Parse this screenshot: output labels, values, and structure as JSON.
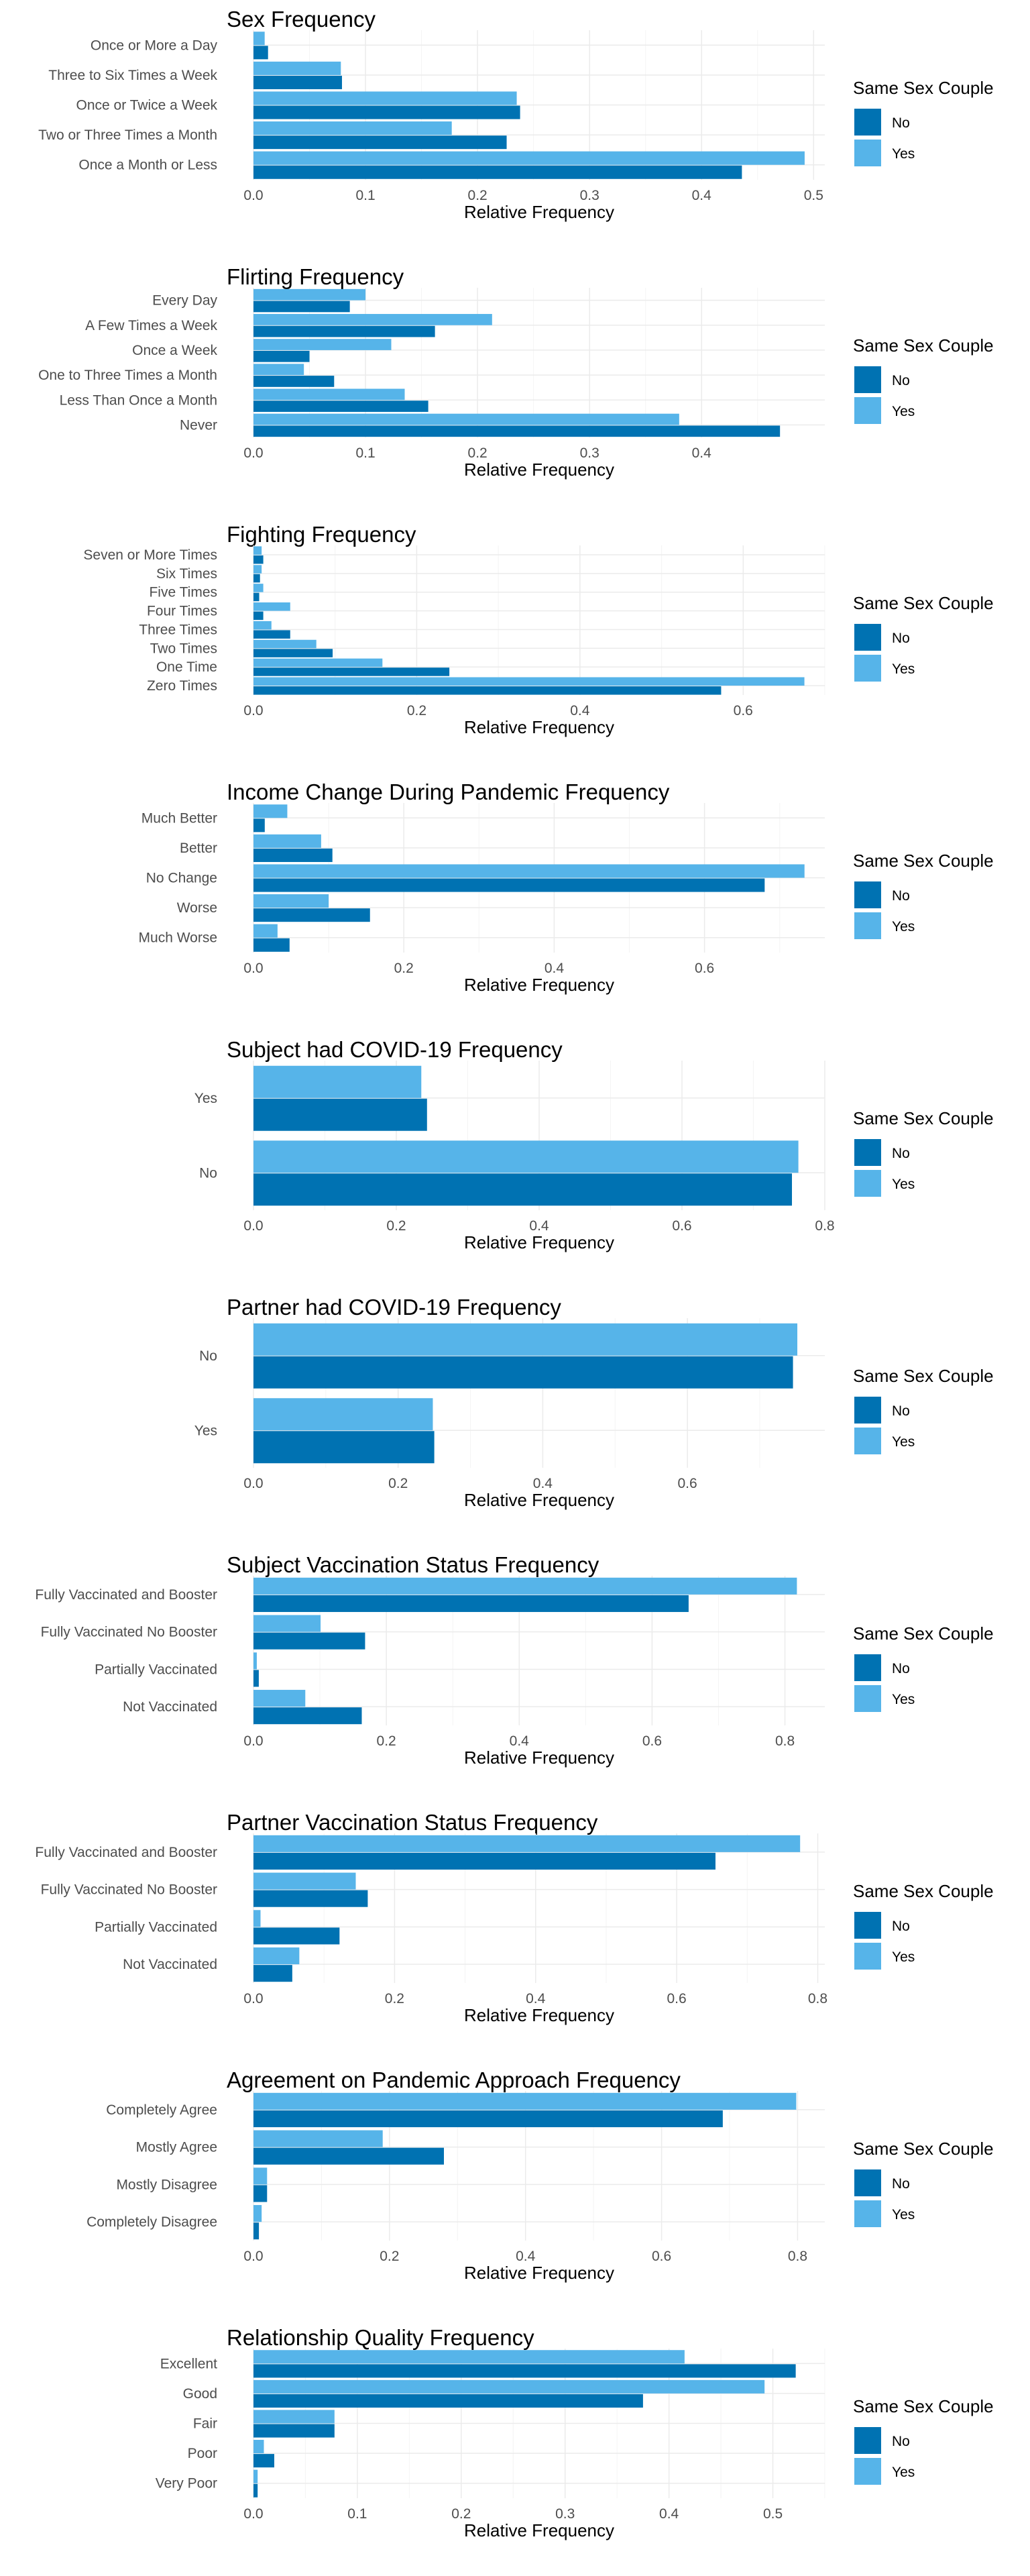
{
  "colors": {
    "No": "#0072b2",
    "Yes": "#56b4e9"
  },
  "legend": {
    "title": "Same Sex Couple",
    "labels": [
      "No",
      "Yes"
    ]
  },
  "chart_data": [
    {
      "type": "bar",
      "title": "Sex Frequency",
      "xlabel": "Relative Frequency",
      "xlim": [
        0,
        0.51
      ],
      "ticks": [
        0.0,
        0.1,
        0.2,
        0.3,
        0.4,
        0.5
      ],
      "tick_labels": [
        "0.0",
        "0.1",
        "0.2",
        "0.3",
        "0.4",
        "0.5"
      ],
      "categories": [
        "Once or More a Day",
        "Three to Six Times a Week",
        "Once or Twice a Week",
        "Two or Three Times a Month",
        "Once a Month or Less"
      ],
      "series": [
        {
          "name": "No",
          "values": [
            0.013,
            0.079,
            0.238,
            0.226,
            0.436
          ]
        },
        {
          "name": "Yes",
          "values": [
            0.01,
            0.078,
            0.235,
            0.177,
            0.492
          ]
        }
      ]
    },
    {
      "type": "bar",
      "title": "Flirting Frequency",
      "xlabel": "Relative Frequency",
      "xlim": [
        0,
        0.51
      ],
      "ticks": [
        0.0,
        0.1,
        0.2,
        0.3,
        0.4
      ],
      "tick_labels": [
        "0.0",
        "0.1",
        "0.2",
        "0.3",
        "0.4"
      ],
      "categories": [
        "Every Day",
        "A Few Times a Week",
        "Once a Week",
        "One to Three Times a Month",
        "Less Than Once a Month",
        "Never"
      ],
      "series": [
        {
          "name": "No",
          "values": [
            0.086,
            0.162,
            0.05,
            0.072,
            0.156,
            0.47
          ]
        },
        {
          "name": "Yes",
          "values": [
            0.1,
            0.213,
            0.123,
            0.045,
            0.135,
            0.38
          ]
        }
      ]
    },
    {
      "type": "bar",
      "title": "Fighting Frequency",
      "xlabel": "Relative Frequency",
      "xlim": [
        0,
        0.7
      ],
      "ticks": [
        0.0,
        0.2,
        0.4,
        0.6
      ],
      "tick_labels": [
        "0.0",
        "0.2",
        "0.4",
        "0.6"
      ],
      "categories": [
        "Seven or More Times",
        "Six Times",
        "Five Times",
        "Four Times",
        "Three Times",
        "Two Times",
        "One Time",
        "Zero Times"
      ],
      "series": [
        {
          "name": "No",
          "values": [
            0.012,
            0.008,
            0.007,
            0.012,
            0.045,
            0.097,
            0.24,
            0.573
          ]
        },
        {
          "name": "Yes",
          "values": [
            0.01,
            0.01,
            0.012,
            0.045,
            0.022,
            0.077,
            0.158,
            0.675
          ]
        }
      ]
    },
    {
      "type": "bar",
      "title": "Income Change During Pandemic Frequency",
      "xlabel": "Relative Frequency",
      "xlim": [
        0,
        0.76
      ],
      "ticks": [
        0.0,
        0.2,
        0.4,
        0.6
      ],
      "tick_labels": [
        "0.0",
        "0.2",
        "0.4",
        "0.6"
      ],
      "categories": [
        "Much Better",
        "Better",
        "No Change",
        "Worse",
        "Much Worse"
      ],
      "series": [
        {
          "name": "No",
          "values": [
            0.015,
            0.105,
            0.68,
            0.155,
            0.048
          ]
        },
        {
          "name": "Yes",
          "values": [
            0.045,
            0.09,
            0.733,
            0.1,
            0.032
          ]
        }
      ]
    },
    {
      "type": "bar",
      "title": "Subject had COVID-19 Frequency",
      "xlabel": "Relative Frequency",
      "xlim": [
        0,
        0.8
      ],
      "ticks": [
        0.0,
        0.2,
        0.4,
        0.6,
        0.8
      ],
      "tick_labels": [
        "0.0",
        "0.2",
        "0.4",
        "0.6",
        "0.8"
      ],
      "categories": [
        "Yes",
        "No"
      ],
      "series": [
        {
          "name": "No",
          "values": [
            0.243,
            0.754
          ]
        },
        {
          "name": "Yes",
          "values": [
            0.235,
            0.763
          ]
        }
      ]
    },
    {
      "type": "bar",
      "title": "Partner had COVID-19 Frequency",
      "xlabel": "Relative Frequency",
      "xlim": [
        0,
        0.79
      ],
      "ticks": [
        0.0,
        0.2,
        0.4,
        0.6
      ],
      "tick_labels": [
        "0.0",
        "0.2",
        "0.4",
        "0.6"
      ],
      "categories": [
        "No",
        "Yes"
      ],
      "series": [
        {
          "name": "No",
          "values": [
            0.746,
            0.25
          ]
        },
        {
          "name": "Yes",
          "values": [
            0.752,
            0.248
          ]
        }
      ]
    },
    {
      "type": "bar",
      "title": "Subject Vaccination Status Frequency",
      "xlabel": "Relative Frequency",
      "xlim": [
        0,
        0.86
      ],
      "ticks": [
        0.0,
        0.2,
        0.4,
        0.6,
        0.8
      ],
      "tick_labels": [
        "0.0",
        "0.2",
        "0.4",
        "0.6",
        "0.8"
      ],
      "categories": [
        "Fully Vaccinated and Booster",
        "Fully Vaccinated No Booster",
        "Partially Vaccinated",
        "Not Vaccinated"
      ],
      "series": [
        {
          "name": "No",
          "values": [
            0.655,
            0.168,
            0.008,
            0.163
          ]
        },
        {
          "name": "Yes",
          "values": [
            0.818,
            0.101,
            0.005,
            0.078
          ]
        }
      ]
    },
    {
      "type": "bar",
      "title": "Partner Vaccination Status Frequency",
      "xlabel": "Relative Frequency",
      "xlim": [
        0,
        0.81
      ],
      "ticks": [
        0.0,
        0.2,
        0.4,
        0.6,
        0.8
      ],
      "tick_labels": [
        "0.0",
        "0.2",
        "0.4",
        "0.6",
        "0.8"
      ],
      "categories": [
        "Fully Vaccinated and Booster",
        "Fully Vaccinated No Booster",
        "Partially Vaccinated",
        "Not Vaccinated"
      ],
      "series": [
        {
          "name": "No",
          "values": [
            0.655,
            0.162,
            0.122,
            0.055
          ]
        },
        {
          "name": "Yes",
          "values": [
            0.775,
            0.145,
            0.01,
            0.065
          ]
        }
      ]
    },
    {
      "type": "bar",
      "title": "Agreement on Pandemic Approach Frequency",
      "xlabel": "Relative Frequency",
      "xlim": [
        0,
        0.84
      ],
      "ticks": [
        0.0,
        0.2,
        0.4,
        0.6,
        0.8
      ],
      "tick_labels": [
        "0.0",
        "0.2",
        "0.4",
        "0.6",
        "0.8"
      ],
      "categories": [
        "Completely Agree",
        "Mostly Agree",
        "Mostly Disagree",
        "Completely Disagree"
      ],
      "series": [
        {
          "name": "No",
          "values": [
            0.69,
            0.28,
            0.02,
            0.008
          ]
        },
        {
          "name": "Yes",
          "values": [
            0.798,
            0.19,
            0.02,
            0.012
          ]
        }
      ]
    },
    {
      "type": "bar",
      "title": "Relationship Quality Frequency",
      "xlabel": "Relative Frequency",
      "xlim": [
        0,
        0.55
      ],
      "ticks": [
        0.0,
        0.1,
        0.2,
        0.3,
        0.4,
        0.5
      ],
      "tick_labels": [
        "0.0",
        "0.1",
        "0.2",
        "0.3",
        "0.4",
        "0.5"
      ],
      "categories": [
        "Excellent",
        "Good",
        "Fair",
        "Poor",
        "Very Poor"
      ],
      "series": [
        {
          "name": "No",
          "values": [
            0.522,
            0.375,
            0.078,
            0.02,
            0.004
          ]
        },
        {
          "name": "Yes",
          "values": [
            0.415,
            0.492,
            0.078,
            0.01,
            0.004
          ]
        }
      ]
    }
  ]
}
